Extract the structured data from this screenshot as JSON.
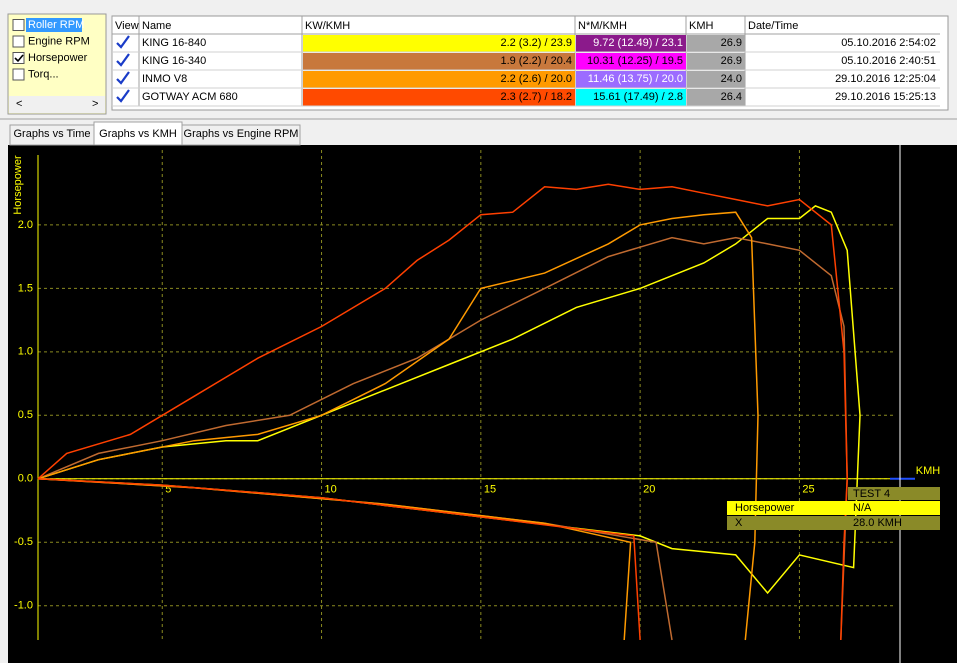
{
  "panel": {
    "items": [
      {
        "label": "Roller RPM",
        "checked": false
      },
      {
        "label": "Engine RPM",
        "checked": false
      },
      {
        "label": "Horsepower",
        "checked": true
      },
      {
        "label": "Torq...",
        "checked": false
      }
    ]
  },
  "table": {
    "columns": [
      "View",
      "Name",
      "KW/KMH",
      "N*M/KMH",
      "KMH",
      "Date/Time"
    ],
    "rows": [
      [
        "KING 16-840",
        "2.2 (3.2) / 23.9",
        "9.72 (12.49) / 23.1",
        "26.9",
        "05.10.2016 2:54:02"
      ],
      [
        "KING 16-340",
        "1.9 (2.2) / 20.4",
        "10.31 (12.25) / 19.5",
        "26.9",
        "05.10.2016 2:40:51"
      ],
      [
        "INMO V8",
        "2.2 (2.6) / 20.0",
        "11.46 (13.75) / 20.0",
        "24.0",
        "29.10.2016 12:25:04"
      ],
      [
        "GOTWAY ACM 680",
        "2.3 (2.7) / 18.2",
        "15.61 (17.49) / 2.8",
        "26.4",
        "29.10.2016 15:25:13"
      ]
    ]
  },
  "tabs": [
    "Graphs vs Time",
    "Graphs vs KMH",
    "Graphs vs Engine RPM"
  ],
  "chart_data": {
    "type": "line",
    "ylabel": "Horsepower",
    "xlabel": "KMH",
    "xlim": [
      1.1,
      28.0
    ],
    "ylim": [
      -1.27,
      2.59
    ],
    "xticks": [
      5,
      10,
      15,
      20,
      25
    ],
    "yticks": [
      {
        "value": 2,
        "label": "2.0"
      },
      1.5,
      {
        "value": 1,
        "label": "1.0"
      },
      0.5,
      {
        "value": 0,
        "label": "0.0"
      },
      -0.5,
      {
        "value": -1,
        "label": "-1.0"
      }
    ],
    "grid": true,
    "series": [
      {
        "name": "KING 16-840",
        "color": "#ffff00",
        "x": [
          1.1,
          3,
          5,
          7,
          8,
          10,
          12,
          14,
          16,
          18,
          20,
          22,
          23,
          24,
          25,
          25.5,
          26,
          26.5,
          26.9,
          26.7,
          25,
          24,
          23,
          21,
          20,
          15,
          10,
          5,
          1.1
        ],
        "values": [
          0,
          0.15,
          0.25,
          0.3,
          0.3,
          0.5,
          0.7,
          0.9,
          1.1,
          1.35,
          1.5,
          1.7,
          1.85,
          2.05,
          2.05,
          2.15,
          2.1,
          1.8,
          0.5,
          -0.7,
          -0.6,
          -0.9,
          -0.6,
          -0.55,
          -0.45,
          -0.3,
          -0.15,
          -0.05,
          0
        ]
      },
      {
        "name": "KING 16-340",
        "color": "#c06a30",
        "x": [
          1.1,
          3,
          5,
          7,
          9,
          11,
          13,
          15,
          17,
          19,
          21,
          22,
          23,
          24,
          25,
          26,
          26.4,
          26.5,
          26.3,
          null,
          21,
          20.5,
          17,
          12,
          6,
          1.1
        ],
        "values": [
          0,
          0.2,
          0.3,
          0.42,
          0.5,
          0.75,
          0.95,
          1.25,
          1.5,
          1.75,
          1.9,
          1.85,
          1.9,
          1.85,
          1.8,
          1.6,
          1.2,
          0,
          -1.27,
          null,
          -1.27,
          -0.5,
          -0.35,
          -0.2,
          -0.07,
          0
        ]
      },
      {
        "name": "INMO V8",
        "color": "#ff9a00",
        "x": [
          1.1,
          3,
          6,
          8,
          10,
          12,
          14,
          15,
          17,
          19,
          20,
          21,
          22,
          23,
          23.5,
          23.7,
          23.6,
          23.3,
          null,
          19.5,
          19.7,
          17,
          12,
          6,
          1.1
        ],
        "values": [
          0,
          0.15,
          0.3,
          0.35,
          0.5,
          0.75,
          1.1,
          1.5,
          1.62,
          1.85,
          2.0,
          2.05,
          2.08,
          2.1,
          1.9,
          0.5,
          -0.5,
          -1.27,
          null,
          -1.27,
          -0.5,
          -0.35,
          -0.2,
          -0.07,
          0
        ]
      },
      {
        "name": "GOTWAY ACM 680",
        "color": "#ff4000",
        "x": [
          1.1,
          2,
          4,
          6,
          8,
          10,
          12,
          13,
          14,
          15,
          16,
          17,
          18,
          19,
          20,
          21,
          22,
          23,
          24,
          25,
          26,
          26.4,
          26.5,
          26.4,
          26.3,
          null,
          20,
          19.8,
          15,
          10,
          5,
          1.1
        ],
        "values": [
          0,
          0.2,
          0.35,
          0.65,
          0.95,
          1.2,
          1.5,
          1.72,
          1.88,
          2.08,
          2.1,
          2.3,
          2.28,
          2.32,
          2.28,
          2.3,
          2.25,
          2.2,
          2.15,
          2.2,
          2.0,
          1.0,
          0,
          -0.5,
          -1.27,
          null,
          -1.27,
          -0.45,
          -0.3,
          -0.15,
          -0.05,
          0
        ]
      }
    ]
  },
  "cursor": {
    "title": "TEST  4",
    "rows": [
      [
        "Horsepower",
        "N/A"
      ],
      [
        "X",
        "28.0 KMH"
      ]
    ]
  }
}
